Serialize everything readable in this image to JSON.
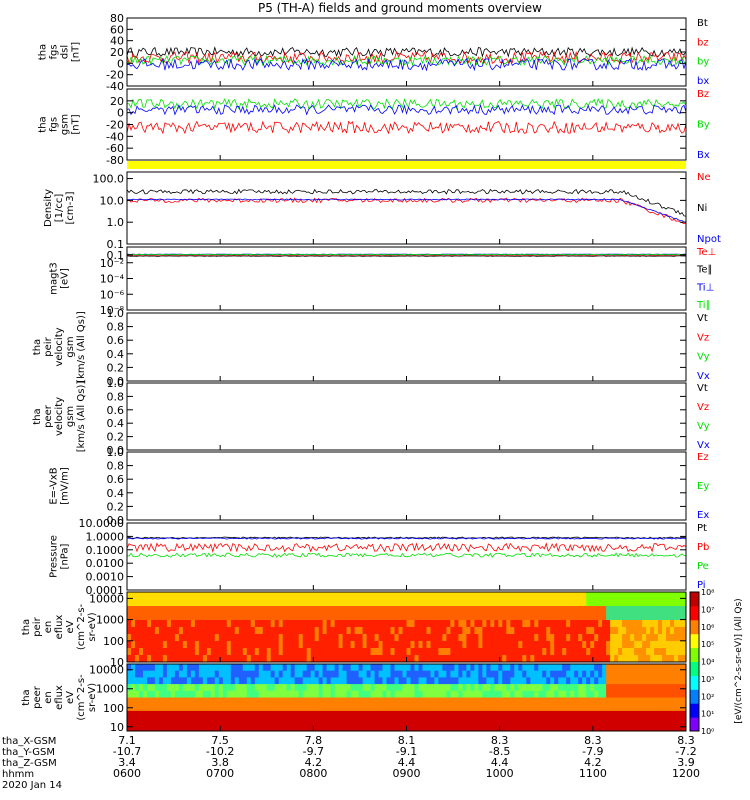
{
  "title": "P5 (TH-A) fields and ground moments overview",
  "colors": {
    "black": "#000000",
    "red": "#ff0000",
    "green": "#00e000",
    "blue": "#0000ff",
    "yellow": "#ffff00",
    "white": "#ffffff"
  },
  "chart_data": [
    {
      "type": "line",
      "id": "fgs_dsl",
      "ylabel": [
        "tha",
        "fgs",
        "dsl",
        "[nT]"
      ],
      "ylim": [
        -40,
        80
      ],
      "yticks": [
        "80",
        "60",
        "40",
        "20",
        "0",
        "-20",
        "-40"
      ],
      "ytick_values": [
        80,
        60,
        40,
        20,
        0,
        -20,
        -40
      ],
      "series": [
        {
          "name": "Bt",
          "color": "#000000",
          "base": 20,
          "noise": 8
        },
        {
          "name": "bz",
          "color": "#ff0000",
          "base": 10,
          "noise": 10
        },
        {
          "name": "by",
          "color": "#00e000",
          "base": 5,
          "noise": 8
        },
        {
          "name": "bx",
          "color": "#0000ff",
          "base": -2,
          "noise": 10
        }
      ]
    },
    {
      "type": "line",
      "id": "fgs_gsm",
      "ylabel": [
        "tha",
        "fgs",
        "gsm",
        "[nT]"
      ],
      "ylim": [
        -80,
        40
      ],
      "yticks": [
        "20",
        "0",
        "-20",
        "-40",
        "-60",
        "-80"
      ],
      "ytick_values": [
        20,
        0,
        -20,
        -40,
        -60,
        -80
      ],
      "series": [
        {
          "name": "Bz",
          "color": "#ff0000",
          "base": -25,
          "noise": 10
        },
        {
          "name": "By",
          "color": "#00e000",
          "base": 15,
          "noise": 8
        },
        {
          "name": "Bx",
          "color": "#0000ff",
          "base": 5,
          "noise": 8
        }
      ]
    },
    {
      "type": "line",
      "id": "density",
      "ylabel": [
        "Density",
        "[1/cc]",
        "[cm-3]"
      ],
      "log": true,
      "ylim": [
        0.1,
        200
      ],
      "yticks": [
        "100.0",
        "10.0",
        "1.0",
        "0.1"
      ],
      "ytick_values": [
        100,
        10,
        1,
        0.1
      ],
      "series": [
        {
          "name": "Ne",
          "color": "#ff0000",
          "base": 10,
          "noise": 0.2
        },
        {
          "name": "Ni",
          "color": "#000000",
          "base": 25,
          "noise": 0.2
        },
        {
          "name": "Npot",
          "color": "#0000ff",
          "base": 11,
          "noise": 0.05
        }
      ]
    },
    {
      "type": "line",
      "id": "temp",
      "ylabel": [
        "magt3",
        "[eV]"
      ],
      "log": true,
      "ylim": [
        1e-08,
        1
      ],
      "yticks": [
        "0.1",
        "10⁻²",
        "10⁻⁴",
        "10⁻⁶",
        "10⁻⁸"
      ],
      "ytick_values": [
        0.1,
        0.01,
        0.0001,
        1e-06,
        1e-08
      ],
      "series": [
        {
          "name": "Te⊥",
          "color": "#ff0000",
          "base": 0.08,
          "noise": 0.05
        },
        {
          "name": "Te∥",
          "color": "#000000",
          "base": 0.07,
          "noise": 0.05
        },
        {
          "name": "Ti⊥",
          "color": "#0000ff",
          "base": 0.12,
          "noise": 0.05
        },
        {
          "name": "Ti∥",
          "color": "#00e000",
          "base": 0.11,
          "noise": 0.05
        }
      ]
    },
    {
      "type": "line",
      "id": "peir_vel",
      "ylabel": [
        "tha",
        "peir",
        "velocity",
        "gsm",
        "[km/s (All Qs)]"
      ],
      "ylim": [
        0,
        1
      ],
      "yticks": [
        "1.0",
        "0.8",
        "0.6",
        "0.4",
        "0.2",
        "0.0"
      ],
      "ytick_values": [
        1,
        0.8,
        0.6,
        0.4,
        0.2,
        0
      ],
      "series": [
        {
          "name": "Vt",
          "color": "#000000"
        },
        {
          "name": "Vz",
          "color": "#ff0000"
        },
        {
          "name": "Vy",
          "color": "#00e000"
        },
        {
          "name": "Vx",
          "color": "#0000ff"
        }
      ]
    },
    {
      "type": "line",
      "id": "peer_vel",
      "ylabel": [
        "tha",
        "peer",
        "velocity",
        "gsm",
        "[km/s (All Qs)]"
      ],
      "ylim": [
        0,
        1
      ],
      "yticks": [
        "1.0",
        "0.8",
        "0.6",
        "0.4",
        "0.2",
        "0.0"
      ],
      "ytick_values": [
        1,
        0.8,
        0.6,
        0.4,
        0.2,
        0
      ],
      "series": [
        {
          "name": "Vt",
          "color": "#000000"
        },
        {
          "name": "Vz",
          "color": "#ff0000"
        },
        {
          "name": "Vy",
          "color": "#00e000"
        },
        {
          "name": "Vx",
          "color": "#0000ff"
        }
      ]
    },
    {
      "type": "line",
      "id": "efield",
      "ylabel": [
        "E=-VxB",
        "[mV/m]"
      ],
      "ylim": [
        0,
        1
      ],
      "yticks": [
        "1.0",
        "0.8",
        "0.6",
        "0.4",
        "0.2",
        "0.0"
      ],
      "ytick_values": [
        1,
        0.8,
        0.6,
        0.4,
        0.2,
        0
      ],
      "series": [
        {
          "name": "Ez",
          "color": "#ff0000"
        },
        {
          "name": "Ey",
          "color": "#00e000"
        },
        {
          "name": "Ex",
          "color": "#0000ff"
        }
      ]
    },
    {
      "type": "line",
      "id": "pressure",
      "ylabel": [
        "Pressure",
        "[nPa]"
      ],
      "log": true,
      "ylim": [
        0.0001,
        10
      ],
      "yticks": [
        "10.0000",
        "1.0000",
        "0.1000",
        "0.0100",
        "0.0010",
        "0.0001"
      ],
      "ytick_values": [
        10,
        1,
        0.1,
        0.01,
        0.001,
        0.0001
      ],
      "series": [
        {
          "name": "Pt",
          "color": "#000000",
          "base": 0.8,
          "noise": 0.1
        },
        {
          "name": "Pb",
          "color": "#ff0000",
          "base": 0.15,
          "noise": 0.6
        },
        {
          "name": "Pe",
          "color": "#00e000",
          "base": 0.04,
          "noise": 0.3
        },
        {
          "name": "Pi",
          "color": "#0000ff",
          "base": 0.7,
          "noise": 0.1
        }
      ]
    },
    {
      "type": "heatmap",
      "id": "peir_en",
      "ylabel": [
        "tha",
        "peir",
        "en",
        "eflux",
        "eV",
        "(cm^2-s-",
        "sr-eV)"
      ],
      "log": true,
      "ylim": [
        10,
        20000
      ],
      "yticks": [
        "10000",
        "1000",
        "100",
        "10"
      ],
      "ytick_values": [
        10000,
        1000,
        100,
        10
      ]
    },
    {
      "type": "heatmap",
      "id": "peer_en",
      "ylabel": [
        "tha",
        "peer",
        "en",
        "eflux",
        "eV",
        "(cm^2-s-",
        "sr-eV)"
      ],
      "log": true,
      "ylim": [
        6,
        20000
      ],
      "yticks": [
        "10000",
        "1000",
        "100",
        "10"
      ],
      "ytick_values": [
        10000,
        1000,
        100,
        10
      ]
    }
  ],
  "colorbar": {
    "label": "[eV/(cm^2-s-sr-eV)] (All Qs)",
    "ticks": [
      "10⁸",
      "10⁷",
      "10⁶",
      "10⁵",
      "10⁴",
      "10³",
      "10²",
      "10¹",
      "10⁰"
    ],
    "tick_values": [
      8,
      7,
      6,
      5,
      4,
      3,
      2,
      1,
      0
    ]
  },
  "xaxis": {
    "row_labels": [
      "tha_X-GSM",
      "tha_Y-GSM",
      "tha_Z-GSM",
      "hhmm",
      "2020 Jan 14"
    ],
    "x_gsm": [
      "7.1",
      "7.5",
      "7.8",
      "8.1",
      "8.3",
      "8.3",
      "8.3"
    ],
    "y_gsm": [
      "-10.7",
      "-10.2",
      "-9.7",
      "-9.1",
      "-8.5",
      "-7.9",
      "-7.2"
    ],
    "z_gsm": [
      "3.4",
      "3.8",
      "4.2",
      "4.4",
      "4.4",
      "4.2",
      "3.9"
    ],
    "hhmm": [
      "0600",
      "0700",
      "0800",
      "0900",
      "1000",
      "1100",
      "1200"
    ],
    "hour_values": [
      6,
      7,
      8,
      9,
      10,
      11,
      12
    ]
  }
}
